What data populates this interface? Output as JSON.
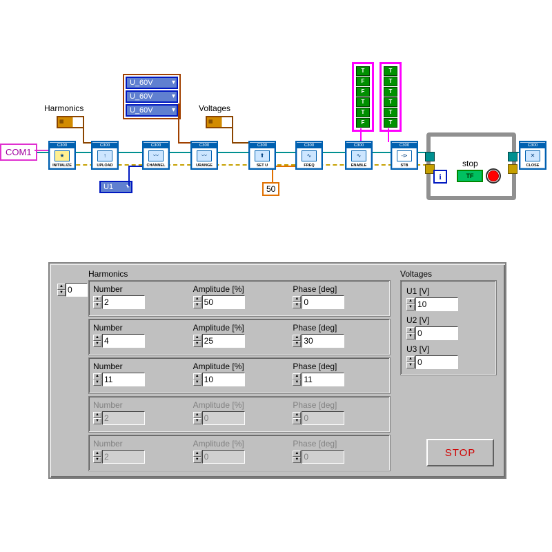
{
  "diagram": {
    "com1_label": "COM1",
    "harmonics_label": "Harmonics",
    "voltages_label": "Voltages",
    "u1_ring": "U1",
    "voltage_ring_options": [
      "U_60V",
      "U_60V",
      "U_60V"
    ],
    "const_50": "50",
    "stop_label": "stop",
    "tf_label": "TF",
    "i_label": "i",
    "node_header": "C300",
    "nodes": [
      {
        "label": "INITIALIZE",
        "icon": "★"
      },
      {
        "label": "UPLOAD",
        "icon": "↑"
      },
      {
        "label": "CHANNEL",
        "icon": "〰"
      },
      {
        "label": "URANGE",
        "icon": "〰"
      },
      {
        "label": "SET U",
        "icon": "⬆"
      },
      {
        "label": "FREQ",
        "icon": "∿"
      },
      {
        "label": "ENABLE",
        "icon": "∿"
      },
      {
        "label": "STB",
        "icon": "-⊳"
      },
      {
        "label": "CLOSE",
        "icon": "✕"
      }
    ],
    "bool_array_1": [
      "T",
      "F",
      "F",
      "T",
      "T",
      "F"
    ],
    "bool_array_2": [
      "T",
      "T",
      "T",
      "T",
      "T",
      "T"
    ],
    "colors": {
      "wire_main": "#009090",
      "wire_err": "#c6a000",
      "wire_pink": "#e030d0",
      "wire_blue": "#0018c0",
      "wire_orange": "#e07000",
      "wire_brown": "#8b4500"
    }
  },
  "front_panel": {
    "harmonics_label": "Harmonics",
    "voltages_label": "Voltages",
    "array_index": "0",
    "col_labels": {
      "number": "Number",
      "amplitude": "Amplitude [%]",
      "phase": "Phase [deg]"
    },
    "harmonics": [
      {
        "number": "2",
        "amplitude": "50",
        "phase": "0",
        "enabled": true
      },
      {
        "number": "4",
        "amplitude": "25",
        "phase": "30",
        "enabled": true
      },
      {
        "number": "11",
        "amplitude": "10",
        "phase": "11",
        "enabled": true
      },
      {
        "number": "2",
        "amplitude": "0",
        "phase": "0",
        "enabled": false
      },
      {
        "number": "2",
        "amplitude": "0",
        "phase": "0",
        "enabled": false
      }
    ],
    "voltages": [
      {
        "label": "U1 [V]",
        "value": "10"
      },
      {
        "label": "U2 [V]",
        "value": "0"
      },
      {
        "label": "U3 [V]",
        "value": "0"
      }
    ],
    "stop_label": "STOP"
  }
}
